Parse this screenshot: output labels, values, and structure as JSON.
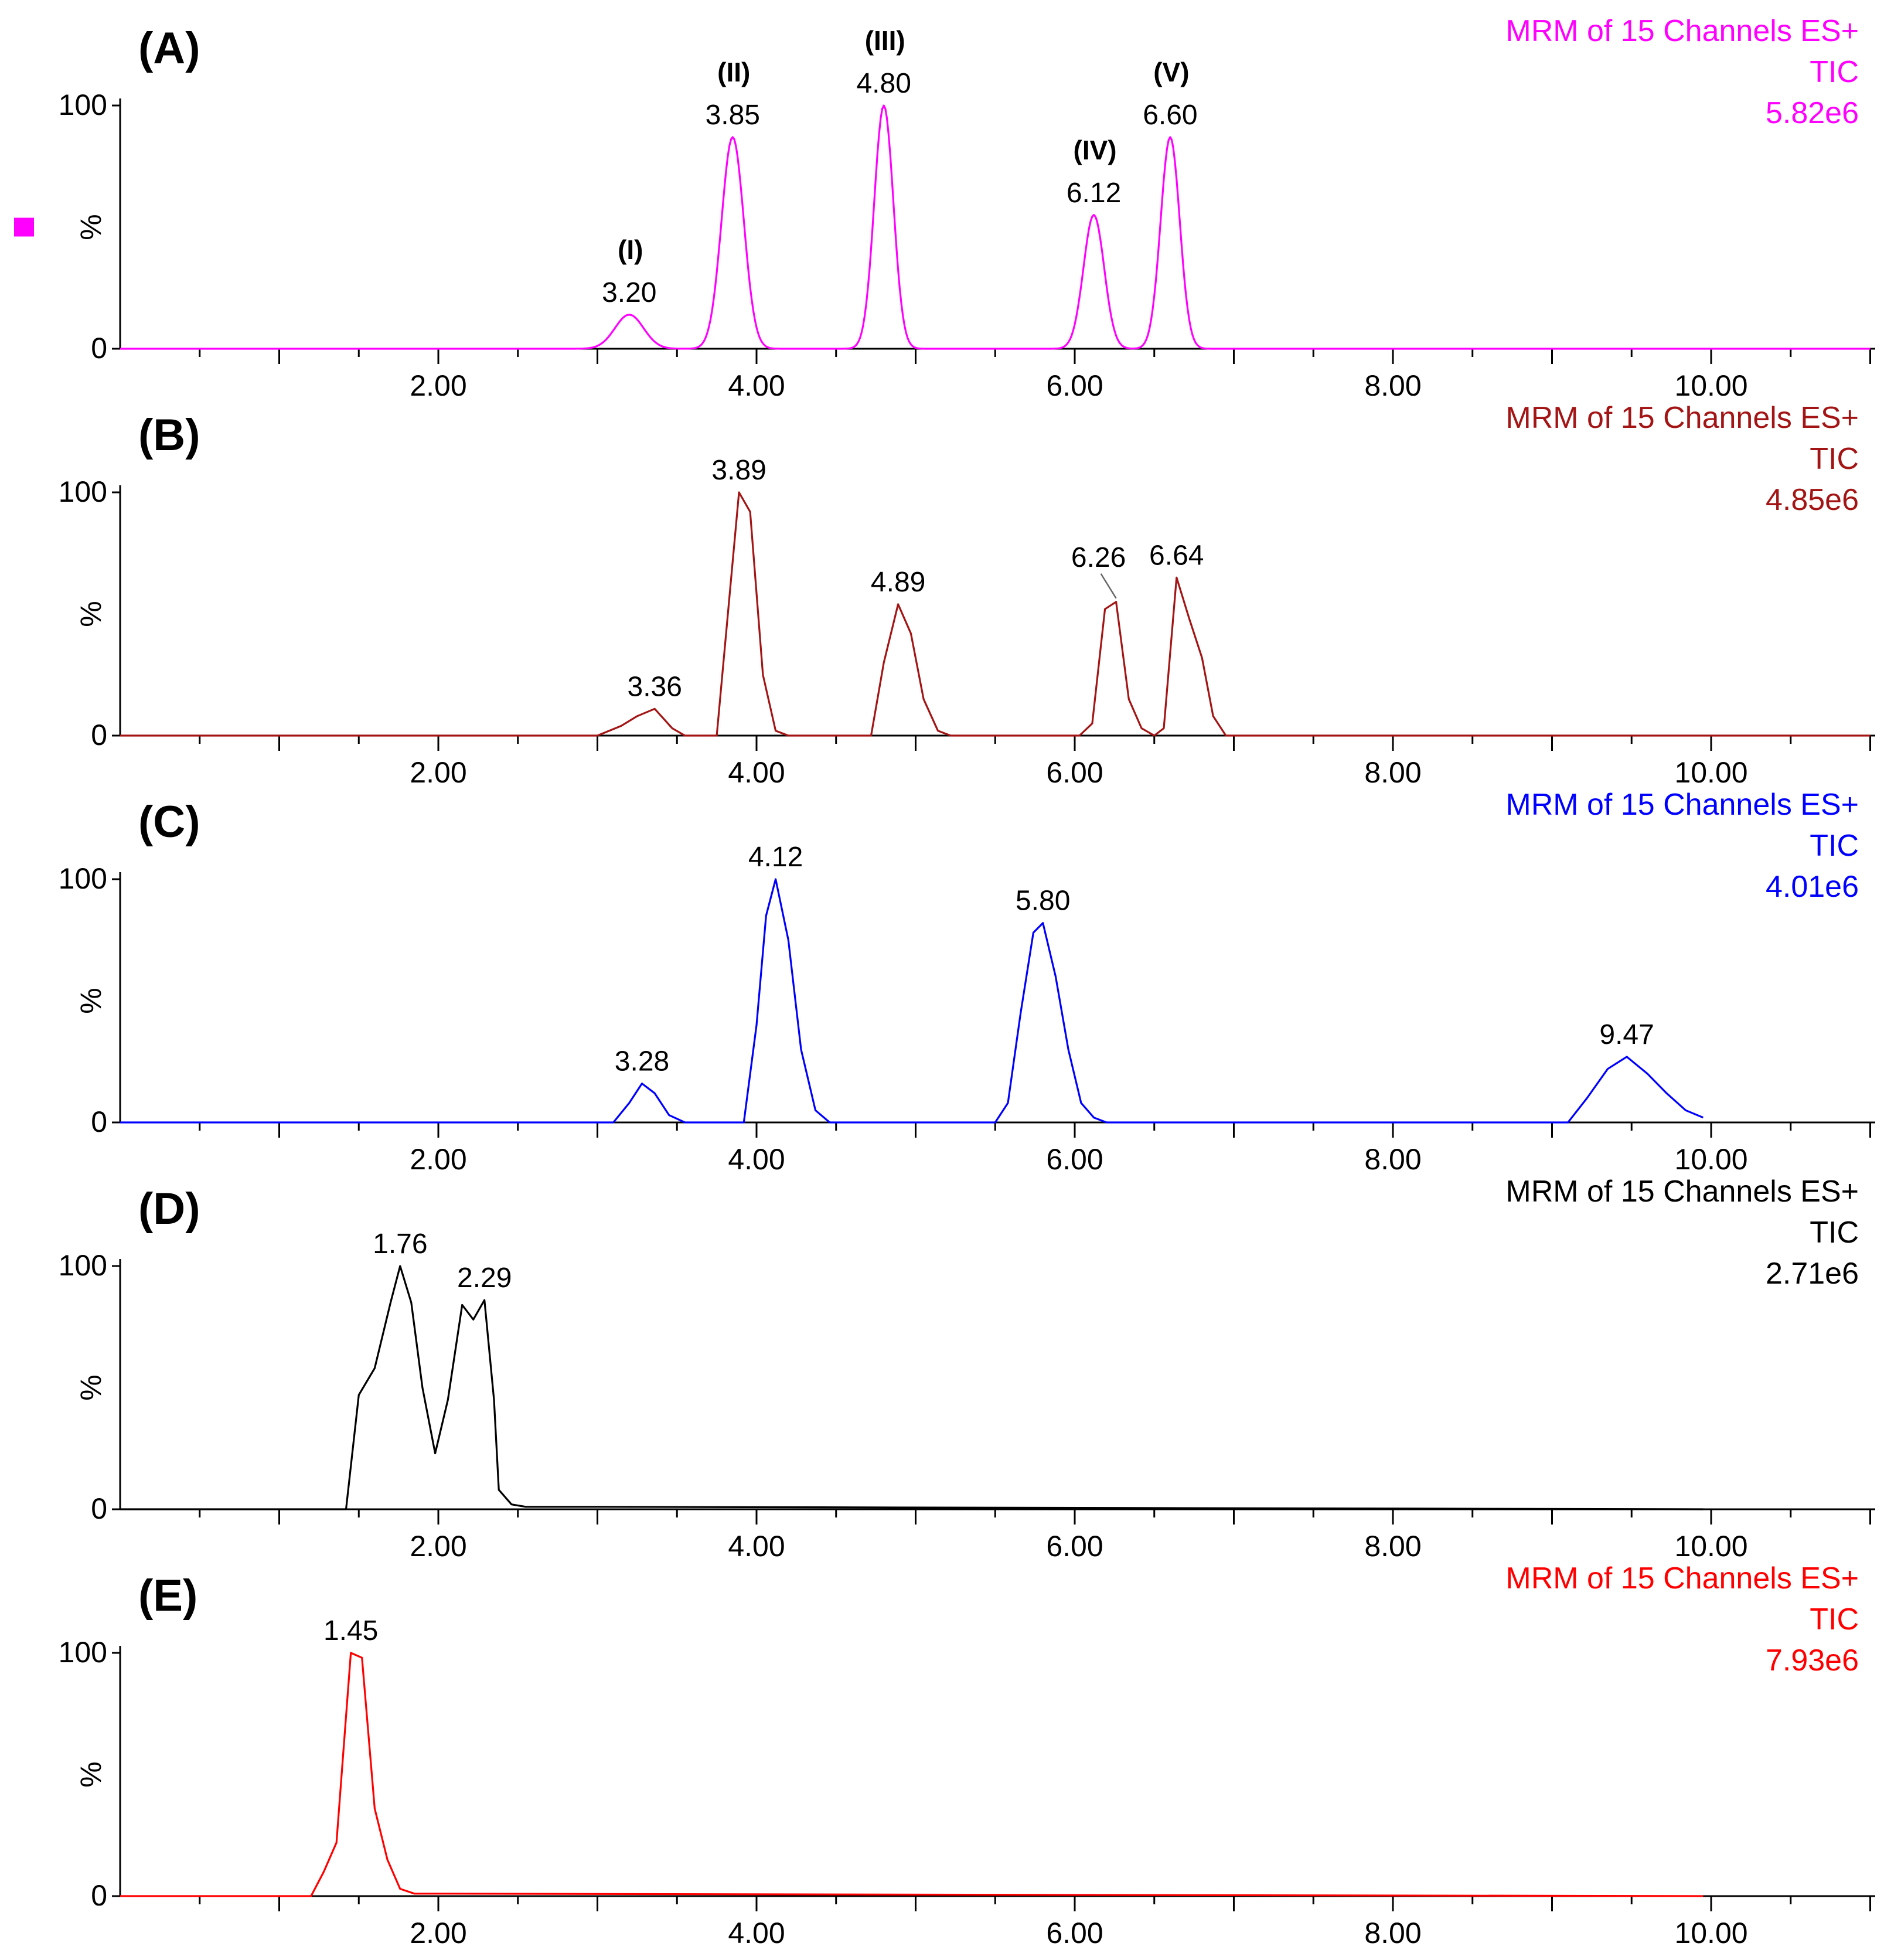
{
  "chart_data": [
    {
      "type": "line",
      "panel_label": "(A)",
      "color": "#ff00ff",
      "info": [
        "MRM of 15 Channels ES+",
        "TIC",
        "5.82e6"
      ],
      "ylabel": "%",
      "y_ticks": [
        "0",
        "100"
      ],
      "x_ticks": [
        "2.00",
        "4.00",
        "6.00",
        "8.00",
        "10.00"
      ],
      "xlim": [
        0,
        11
      ],
      "ylim": [
        0,
        100
      ],
      "marker": "square",
      "peaks": [
        {
          "x": 3.2,
          "y": 14,
          "w": 0.09,
          "label": "3.20",
          "name": "(I)"
        },
        {
          "x": 3.85,
          "y": 87,
          "w": 0.07,
          "label": "3.85",
          "name": "(II)"
        },
        {
          "x": 4.8,
          "y": 100,
          "w": 0.06,
          "label": "4.80",
          "name": "(III)"
        },
        {
          "x": 6.12,
          "y": 55,
          "w": 0.065,
          "label": "6.12",
          "name": "(IV)"
        },
        {
          "x": 6.6,
          "y": 87,
          "w": 0.06,
          "label": "6.60",
          "name": "(V)"
        }
      ],
      "line_end": 11.0
    },
    {
      "type": "line",
      "panel_label": "(B)",
      "color": "#a31515",
      "info": [
        "MRM of 15 Channels ES+",
        "TIC",
        "4.85e6"
      ],
      "ylabel": "%",
      "y_ticks": [
        "0",
        "100"
      ],
      "x_ticks": [
        "2.00",
        "4.00",
        "6.00",
        "8.00",
        "10.00"
      ],
      "xlim": [
        0,
        11
      ],
      "ylim": [
        0,
        100
      ],
      "points": [
        [
          0,
          0
        ],
        [
          3.0,
          0
        ],
        [
          3.15,
          4
        ],
        [
          3.25,
          8
        ],
        [
          3.36,
          11
        ],
        [
          3.47,
          3
        ],
        [
          3.55,
          0
        ],
        [
          3.75,
          0
        ],
        [
          3.82,
          50
        ],
        [
          3.89,
          100
        ],
        [
          3.96,
          92
        ],
        [
          4.04,
          25
        ],
        [
          4.12,
          2
        ],
        [
          4.2,
          0
        ],
        [
          4.72,
          0
        ],
        [
          4.8,
          30
        ],
        [
          4.89,
          54
        ],
        [
          4.97,
          42
        ],
        [
          5.05,
          15
        ],
        [
          5.14,
          2
        ],
        [
          5.22,
          0
        ],
        [
          6.03,
          0
        ],
        [
          6.11,
          5
        ],
        [
          6.19,
          52
        ],
        [
          6.26,
          55
        ],
        [
          6.34,
          15
        ],
        [
          6.42,
          3
        ],
        [
          6.5,
          0
        ],
        [
          6.56,
          3
        ],
        [
          6.64,
          65
        ],
        [
          6.72,
          48
        ],
        [
          6.8,
          32
        ],
        [
          6.87,
          8
        ],
        [
          6.95,
          0
        ],
        [
          11.0,
          0
        ]
      ],
      "labels": [
        {
          "x": 3.36,
          "y": 11,
          "label": "3.36"
        },
        {
          "x": 3.89,
          "y": 100,
          "label": "3.89"
        },
        {
          "x": 4.89,
          "y": 54,
          "label": "4.89"
        },
        {
          "x": 6.26,
          "y": 55,
          "label": "6.26",
          "leader": true
        },
        {
          "x": 6.64,
          "y": 65,
          "label": "6.64"
        }
      ]
    },
    {
      "type": "line",
      "panel_label": "(C)",
      "color": "#0000ff",
      "info": [
        "MRM of 15 Channels ES+",
        "TIC",
        "4.01e6"
      ],
      "ylabel": "%",
      "y_ticks": [
        "0",
        "100"
      ],
      "x_ticks": [
        "2.00",
        "4.00",
        "6.00",
        "8.00",
        "10.00"
      ],
      "xlim": [
        0,
        11
      ],
      "ylim": [
        0,
        100
      ],
      "points": [
        [
          0,
          0
        ],
        [
          3.1,
          0
        ],
        [
          3.2,
          8
        ],
        [
          3.28,
          16
        ],
        [
          3.36,
          12
        ],
        [
          3.45,
          3
        ],
        [
          3.55,
          0
        ],
        [
          3.92,
          0
        ],
        [
          4.0,
          40
        ],
        [
          4.06,
          85
        ],
        [
          4.12,
          100
        ],
        [
          4.2,
          75
        ],
        [
          4.28,
          30
        ],
        [
          4.37,
          5
        ],
        [
          4.46,
          0
        ],
        [
          5.5,
          0
        ],
        [
          5.58,
          8
        ],
        [
          5.66,
          45
        ],
        [
          5.74,
          78
        ],
        [
          5.8,
          82
        ],
        [
          5.88,
          60
        ],
        [
          5.96,
          30
        ],
        [
          6.04,
          8
        ],
        [
          6.12,
          2
        ],
        [
          6.2,
          0
        ],
        [
          9.1,
          0
        ],
        [
          9.22,
          10
        ],
        [
          9.35,
          22
        ],
        [
          9.47,
          27
        ],
        [
          9.6,
          20
        ],
        [
          9.72,
          12
        ],
        [
          9.84,
          5
        ],
        [
          9.95,
          2
        ]
      ],
      "labels": [
        {
          "x": 3.28,
          "y": 16,
          "label": "3.28"
        },
        {
          "x": 4.12,
          "y": 100,
          "label": "4.12"
        },
        {
          "x": 5.8,
          "y": 82,
          "label": "5.80"
        },
        {
          "x": 9.47,
          "y": 27,
          "label": "9.47"
        }
      ]
    },
    {
      "type": "line",
      "panel_label": "(D)",
      "color": "#000000",
      "info": [
        "MRM of 15 Channels ES+",
        "TIC",
        "2.71e6"
      ],
      "ylabel": "%",
      "y_ticks": [
        "0",
        "100"
      ],
      "x_ticks": [
        "2.00",
        "4.00",
        "6.00",
        "8.00",
        "10.00"
      ],
      "xlim": [
        0,
        11
      ],
      "ylim": [
        0,
        100
      ],
      "points": [
        [
          0,
          0
        ],
        [
          1.42,
          0
        ],
        [
          1.5,
          47
        ],
        [
          1.6,
          58
        ],
        [
          1.7,
          85
        ],
        [
          1.76,
          100
        ],
        [
          1.83,
          85
        ],
        [
          1.9,
          50
        ],
        [
          1.98,
          23
        ],
        [
          2.06,
          45
        ],
        [
          2.15,
          84
        ],
        [
          2.22,
          78
        ],
        [
          2.29,
          86
        ],
        [
          2.35,
          45
        ],
        [
          2.38,
          8
        ],
        [
          2.46,
          2
        ],
        [
          2.55,
          1
        ],
        [
          3.0,
          1
        ],
        [
          9.95,
          0
        ]
      ],
      "labels": [
        {
          "x": 1.76,
          "y": 100,
          "label": "1.76"
        },
        {
          "x": 2.29,
          "y": 86,
          "label": "2.29"
        }
      ]
    },
    {
      "type": "line",
      "panel_label": "(E)",
      "color": "#ff0000",
      "info": [
        "MRM of 15 Channels ES+",
        "TIC",
        "7.93e6"
      ],
      "ylabel": "%",
      "y_ticks": [
        "0",
        "100"
      ],
      "x_ticks": [
        "2.00",
        "4.00",
        "6.00",
        "8.00",
        "10.00"
      ],
      "xlim": [
        0,
        11
      ],
      "ylim": [
        0,
        100
      ],
      "points": [
        [
          0,
          0
        ],
        [
          1.2,
          0
        ],
        [
          1.28,
          10
        ],
        [
          1.36,
          22
        ],
        [
          1.45,
          100
        ],
        [
          1.52,
          98
        ],
        [
          1.6,
          36
        ],
        [
          1.68,
          15
        ],
        [
          1.76,
          3
        ],
        [
          1.85,
          1
        ],
        [
          2.0,
          1
        ],
        [
          9.95,
          0
        ]
      ],
      "labels": [
        {
          "x": 1.45,
          "y": 100,
          "label": "1.45"
        }
      ]
    }
  ]
}
